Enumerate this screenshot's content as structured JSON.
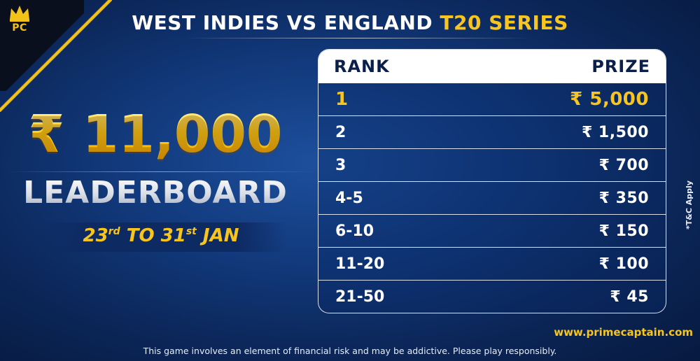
{
  "logo": {
    "text": "PC"
  },
  "headline": {
    "white": "WEST INDIES VS ENGLAND",
    "yellow": "T20 SERIES"
  },
  "prize_pool": {
    "amount": "₹ 11,000",
    "label": "LEADERBOARD"
  },
  "dates": {
    "start_day": "23",
    "start_suffix": "rd",
    "to": "TO",
    "end_day": "31",
    "end_suffix": "st",
    "month": "JAN"
  },
  "table": {
    "headers": {
      "rank": "RANK",
      "prize": "PRIZE"
    },
    "rows": [
      {
        "rank": "1",
        "prize": "₹ 5,000"
      },
      {
        "rank": "2",
        "prize": "₹ 1,500"
      },
      {
        "rank": "3",
        "prize": "₹ 700"
      },
      {
        "rank": "4-5",
        "prize": "₹ 350"
      },
      {
        "rank": "6-10",
        "prize": "₹ 150"
      },
      {
        "rank": "11-20",
        "prize": "₹ 100"
      },
      {
        "rank": "21-50",
        "prize": "₹ 45"
      }
    ]
  },
  "terms": "*T&C Apply",
  "website": "www.primecaptain.com",
  "disclaimer": "This game involves an element of financial risk and may be addictive. Please play responsibly.",
  "colors": {
    "accent": "#f7c51d",
    "background": "#123a7d"
  }
}
